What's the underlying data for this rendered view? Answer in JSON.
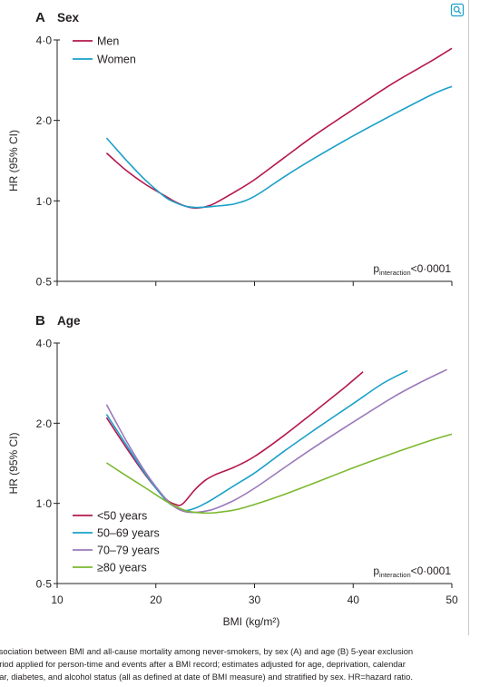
{
  "chart_data": [
    {
      "type": "line",
      "panel_letter": "A",
      "title": "Sex",
      "xlabel": "",
      "ylabel": "HR (95% CI)",
      "log_y": true,
      "xlim": [
        10,
        50
      ],
      "ylim": [
        0.5,
        4.0
      ],
      "yticks": [
        {
          "value": 4.0,
          "label": "4·0"
        },
        {
          "value": 2.0,
          "label": "2·0"
        },
        {
          "value": 1.0,
          "label": "1·0"
        },
        {
          "value": 0.5,
          "label": "0·5"
        }
      ],
      "xticks": [
        10,
        20,
        30,
        40,
        50
      ],
      "xtick_labels_shown": false,
      "legend_position": "top-left",
      "annotation": {
        "p": "p",
        "sub": "interaction",
        "rest": "<0·0001"
      },
      "series": [
        {
          "name": "Men",
          "color": "#b5174f",
          "x": [
            15,
            17,
            19,
            21,
            22,
            23,
            24,
            25,
            26,
            28,
            30,
            33,
            36,
            40,
            44,
            48,
            50
          ],
          "y": [
            1.51,
            1.3,
            1.15,
            1.04,
            0.99,
            0.955,
            0.94,
            0.95,
            0.98,
            1.08,
            1.2,
            1.45,
            1.75,
            2.2,
            2.75,
            3.35,
            3.72
          ]
        },
        {
          "name": "Women",
          "color": "#1aa0c8",
          "x": [
            15,
            17,
            19,
            21,
            22,
            23,
            24,
            25,
            26,
            28,
            30,
            33,
            36,
            40,
            44,
            48,
            50
          ],
          "y": [
            1.72,
            1.42,
            1.19,
            1.03,
            0.985,
            0.955,
            0.945,
            0.948,
            0.955,
            0.975,
            1.04,
            1.23,
            1.44,
            1.75,
            2.1,
            2.5,
            2.68
          ]
        }
      ]
    },
    {
      "type": "line",
      "panel_letter": "B",
      "title": "Age",
      "xlabel": "BMI (kg/m²)",
      "ylabel": "HR (95% CI)",
      "log_y": true,
      "xlim": [
        10,
        50
      ],
      "ylim": [
        0.5,
        4.0
      ],
      "yticks": [
        {
          "value": 4.0,
          "label": "4·0"
        },
        {
          "value": 2.0,
          "label": "2·0"
        },
        {
          "value": 1.0,
          "label": "1·0"
        },
        {
          "value": 0.5,
          "label": "0·5"
        }
      ],
      "xticks": [
        10,
        20,
        30,
        40,
        50
      ],
      "xtick_labels_shown": true,
      "legend_position": "bottom-left",
      "annotation": {
        "p": "p",
        "sub": "interaction",
        "rest": "<0·0001"
      },
      "series": [
        {
          "name": "<50 years",
          "color": "#b5174f",
          "x": [
            15,
            17,
            19,
            21,
            22,
            22.5,
            23,
            24,
            25,
            26,
            28,
            30,
            33,
            36,
            39,
            41
          ],
          "y": [
            2.1,
            1.62,
            1.27,
            1.04,
            0.99,
            0.985,
            1.02,
            1.13,
            1.22,
            1.28,
            1.37,
            1.5,
            1.8,
            2.2,
            2.7,
            3.12
          ]
        },
        {
          "name": "50–69 years",
          "color": "#1aa0c8",
          "x": [
            15,
            17,
            19,
            21,
            22,
            23,
            24,
            25,
            26,
            28,
            30,
            33,
            36,
            40,
            43,
            45.5
          ],
          "y": [
            2.16,
            1.66,
            1.28,
            1.03,
            0.97,
            0.94,
            0.96,
            1.0,
            1.05,
            1.17,
            1.3,
            1.57,
            1.88,
            2.37,
            2.82,
            3.15
          ]
        },
        {
          "name": "70–79 years",
          "color": "#9b79bb",
          "x": [
            15,
            17,
            19,
            21,
            22,
            23,
            24,
            25,
            26,
            28,
            30,
            33,
            36,
            40,
            44,
            47,
            49.5
          ],
          "y": [
            2.35,
            1.72,
            1.3,
            1.04,
            0.965,
            0.93,
            0.925,
            0.935,
            0.955,
            1.03,
            1.14,
            1.36,
            1.62,
            2.02,
            2.5,
            2.87,
            3.18
          ]
        },
        {
          "name": "≥80 years",
          "color": "#7cb82f",
          "x": [
            15,
            17,
            19,
            21,
            22,
            23,
            24,
            25,
            26,
            28,
            30,
            33,
            36,
            40,
            44,
            48,
            50
          ],
          "y": [
            1.42,
            1.27,
            1.14,
            1.02,
            0.975,
            0.94,
            0.925,
            0.92,
            0.922,
            0.945,
            0.99,
            1.08,
            1.19,
            1.36,
            1.54,
            1.73,
            1.82
          ]
        }
      ]
    }
  ],
  "caption": {
    "lines": [
      "ssociation between BMI and all-cause mortality among never-smokers, by sex (A) and age (B) 5-year exclusion",
      "eriod applied for person-time and events after a BMI record; estimates adjusted for age, deprivation, calendar",
      "ear, diabetes, and alcohol status (all as defined at date of BMI measure) and stratified by sex. HR=hazard ratio."
    ]
  },
  "icons": {
    "corner": "zoom-icon"
  }
}
